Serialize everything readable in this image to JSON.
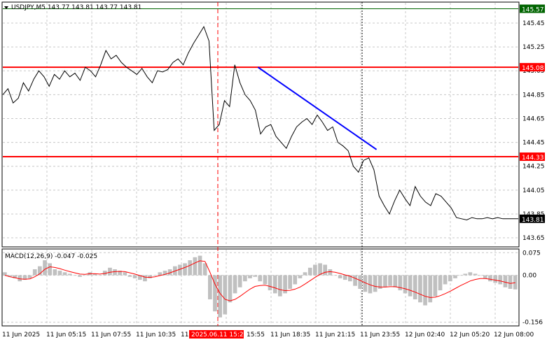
{
  "header": {
    "symbol_info": "USDJPY,M5  143.77 143.81 143.77 143.81"
  },
  "macd_header": "MACD(12,26,9) -0.047 -0.025",
  "colors": {
    "price_line": "#000000",
    "level_line": "#ff0000",
    "resistance_line": "#006400",
    "trend_line": "#0000ff",
    "macd_hist": "#c0c0c0",
    "macd_signal": "#ff0000",
    "grid": "#c8c8c8",
    "current_price_badge": "#000000",
    "marker_line": "#ff0000"
  },
  "chart_data": [
    {
      "type": "line",
      "panel": "price",
      "y_range": [
        143.58,
        145.62
      ],
      "y_ticks": [
        "145.45",
        "145.25",
        "145.05",
        "144.85",
        "144.65",
        "144.45",
        "144.25",
        "144.05",
        "143.85",
        "143.65"
      ],
      "levels": [
        {
          "value": 145.57,
          "label": "145.57",
          "color": "#006400"
        },
        {
          "value": 145.08,
          "label": "145.08",
          "color": "#ff0000"
        },
        {
          "value": 144.33,
          "label": "144.33",
          "color": "#ff0000"
        }
      ],
      "current_price": {
        "value": 143.81,
        "label": "143.81"
      },
      "trend_line": {
        "from": [
          0.495,
          145.08
        ],
        "to": [
          0.725,
          144.39
        ]
      },
      "series": [
        {
          "x": [
            0,
            0.01,
            0.02,
            0.03,
            0.04,
            0.05,
            0.06,
            0.07,
            0.08,
            0.09,
            0.1,
            0.11,
            0.12,
            0.13,
            0.14,
            0.15,
            0.16,
            0.17,
            0.18,
            0.19,
            0.2,
            0.21,
            0.22,
            0.23,
            0.24,
            0.25,
            0.26,
            0.27,
            0.28,
            0.29,
            0.3,
            0.31,
            0.32,
            0.33,
            0.34,
            0.35,
            0.36,
            0.37,
            0.38,
            0.39,
            0.4,
            0.41,
            0.42,
            0.43,
            0.44,
            0.45,
            0.46,
            0.47,
            0.48,
            0.49,
            0.495,
            0.5,
            0.505,
            0.51,
            0.52,
            0.53,
            0.54,
            0.55,
            0.56,
            0.57,
            0.58,
            0.59,
            0.6,
            0.61,
            0.62,
            0.63,
            0.64,
            0.65,
            0.66,
            0.67,
            0.68,
            0.69,
            0.7,
            0.71,
            0.72,
            0.73,
            0.74,
            0.75,
            0.76,
            0.77,
            0.78,
            0.79,
            0.8,
            0.81,
            0.82,
            0.83,
            0.84,
            0.85,
            0.86,
            0.87,
            0.88,
            0.89,
            0.9,
            0.91,
            0.92,
            0.93,
            0.94,
            0.95,
            0.96,
            0.97,
            0.98,
            0.99,
            1.0
          ],
          "values": [
            144.85,
            144.9,
            144.78,
            144.82,
            144.95,
            144.88,
            144.98,
            145.05,
            145.0,
            144.92,
            145.02,
            144.98,
            145.05,
            145.0,
            145.03,
            144.97,
            145.08,
            145.05,
            145.0,
            145.1,
            145.22,
            145.15,
            145.18,
            145.12,
            145.08,
            145.05,
            145.02,
            145.07,
            145.0,
            144.95,
            145.05,
            145.04,
            145.06,
            145.12,
            145.15,
            145.1,
            145.2,
            145.28,
            145.35,
            145.42,
            145.3,
            144.55,
            144.6,
            144.8,
            144.75,
            145.1,
            144.95,
            144.85,
            144.8,
            144.72,
            144.62,
            144.52,
            144.55,
            144.58,
            144.6,
            144.5,
            144.45,
            144.4,
            144.5,
            144.58,
            144.62,
            144.65,
            144.6,
            144.68,
            144.62,
            144.55,
            144.58,
            144.45,
            144.42,
            144.38,
            144.25,
            144.2,
            144.3,
            144.32,
            144.22,
            144.0,
            143.92,
            143.85,
            143.96,
            144.05,
            143.98,
            143.92,
            144.08,
            144.0,
            143.95,
            143.92,
            144.02,
            144.0,
            143.95,
            143.9,
            143.82,
            143.81,
            143.8,
            143.82,
            143.81,
            143.81,
            143.82,
            143.81,
            143.82,
            143.81,
            143.81,
            143.81,
            143.81
          ]
        }
      ]
    },
    {
      "type": "bar",
      "panel": "macd",
      "y_range": [
        -0.166,
        0.085
      ],
      "y_ticks": [
        "0.075",
        "0.00",
        "-0.156"
      ],
      "histogram": [
        0.01,
        -0.005,
        -0.01,
        -0.02,
        -0.015,
        -0.01,
        0.02,
        0.03,
        0.05,
        0.04,
        0.02,
        0.015,
        0.01,
        0.005,
        0.0,
        -0.005,
        0.0,
        0.01,
        0.005,
        0.0,
        0.015,
        0.025,
        0.02,
        0.015,
        0.01,
        -0.005,
        -0.01,
        -0.015,
        -0.02,
        -0.01,
        0.0,
        0.01,
        0.015,
        0.02,
        0.03,
        0.035,
        0.04,
        0.05,
        0.06,
        0.065,
        0.04,
        -0.08,
        -0.12,
        -0.14,
        -0.13,
        -0.09,
        -0.06,
        -0.04,
        -0.02,
        -0.01,
        -0.005,
        -0.02,
        -0.03,
        -0.05,
        -0.06,
        -0.07,
        -0.06,
        -0.045,
        -0.03,
        -0.01,
        0.01,
        0.025,
        0.035,
        0.04,
        0.035,
        0.02,
        0.0,
        -0.01,
        -0.015,
        -0.02,
        -0.035,
        -0.045,
        -0.055,
        -0.06,
        -0.055,
        -0.045,
        -0.04,
        -0.035,
        -0.04,
        -0.05,
        -0.06,
        -0.07,
        -0.08,
        -0.09,
        -0.1,
        -0.09,
        -0.07,
        -0.05,
        -0.03,
        -0.02,
        -0.01,
        0.0,
        0.005,
        0.01,
        0.005,
        0.0,
        -0.01,
        -0.02,
        -0.025,
        -0.03,
        -0.04,
        -0.045,
        -0.047
      ],
      "signal": [
        0.0,
        -0.005,
        -0.008,
        -0.012,
        -0.013,
        -0.012,
        -0.005,
        0.005,
        0.02,
        0.028,
        0.026,
        0.022,
        0.017,
        0.012,
        0.008,
        0.004,
        0.003,
        0.005,
        0.005,
        0.004,
        0.006,
        0.01,
        0.012,
        0.013,
        0.012,
        0.008,
        0.004,
        -0.001,
        -0.006,
        -0.007,
        -0.005,
        -0.001,
        0.003,
        0.008,
        0.014,
        0.02,
        0.026,
        0.033,
        0.041,
        0.048,
        0.046,
        0.01,
        -0.03,
        -0.06,
        -0.08,
        -0.085,
        -0.08,
        -0.07,
        -0.058,
        -0.046,
        -0.037,
        -0.034,
        -0.033,
        -0.037,
        -0.042,
        -0.048,
        -0.051,
        -0.05,
        -0.046,
        -0.039,
        -0.029,
        -0.018,
        -0.007,
        0.003,
        0.01,
        0.012,
        0.01,
        0.006,
        0.001,
        -0.003,
        -0.01,
        -0.017,
        -0.025,
        -0.032,
        -0.037,
        -0.039,
        -0.039,
        -0.038,
        -0.038,
        -0.041,
        -0.045,
        -0.05,
        -0.056,
        -0.063,
        -0.07,
        -0.074,
        -0.073,
        -0.068,
        -0.061,
        -0.053,
        -0.044,
        -0.035,
        -0.027,
        -0.019,
        -0.014,
        -0.011,
        -0.011,
        -0.013,
        -0.016,
        -0.019,
        -0.023,
        -0.027,
        -0.025
      ]
    }
  ],
  "x_axis": {
    "labels": [
      "11 Jun 2025",
      "11 Jun 05:15",
      "11 Jun 07:55",
      "11 Jun 10:35",
      "11",
      "15:55",
      "11 Jun 18:35",
      "11 Jun 21:15",
      "11 Jun 23:55",
      "12 Jun 02:40",
      "12 Jun 05:20",
      "12 Jun 08:00"
    ],
    "highlight_label": "2025.06.11 15:25"
  }
}
